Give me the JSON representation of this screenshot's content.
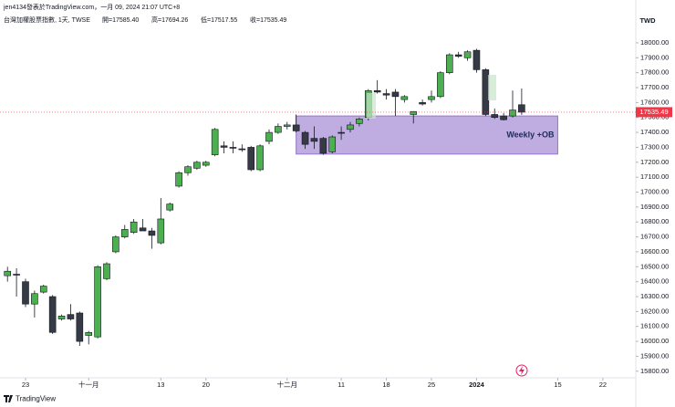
{
  "header": {
    "author": "jen4134發表於TradingView.com，一月 09, 2024 21:07 UTC+8",
    "symbol": "台灣加權股票指數, 1天, TWSE",
    "ohlc": [
      "開=17585.40",
      "高=17694.26",
      "低=17517.55",
      "收=17535.49"
    ]
  },
  "currency": "TWD",
  "brand": "TradingView",
  "chart_data": {
    "type": "candlestick",
    "x": [
      0,
      1,
      2,
      3,
      4,
      5,
      6,
      7,
      8,
      9,
      10,
      11,
      12,
      13,
      14,
      15,
      16,
      17,
      18,
      19,
      20,
      21,
      22,
      23,
      24,
      25,
      26,
      27,
      28,
      29,
      30,
      31,
      32,
      33,
      34,
      35,
      36,
      37,
      38,
      39,
      40,
      41,
      42,
      43,
      44,
      45,
      46,
      47,
      48,
      49,
      50,
      51,
      52,
      53,
      54,
      55,
      56,
      57
    ],
    "open": [
      16440,
      16450,
      16400,
      16250,
      16330,
      16300,
      16150,
      16180,
      16190,
      16040,
      16030,
      16420,
      16600,
      16700,
      16730,
      16760,
      16740,
      16660,
      16880,
      17040,
      17130,
      17160,
      17180,
      17250,
      17310,
      17300,
      17290,
      17300,
      17150,
      17340,
      17400,
      17440,
      17450,
      17400,
      17360,
      17360,
      17270,
      17400,
      17420,
      17460,
      17500,
      17680,
      17660,
      17670,
      17620,
      17520,
      17600,
      17620,
      17640,
      17800,
      17920,
      17900,
      17950,
      17820,
      17520,
      17510,
      17510,
      17585.4
    ],
    "high": [
      16500,
      16490,
      16420,
      16340,
      16380,
      16310,
      16180,
      16250,
      16200,
      16070,
      16510,
      16530,
      16710,
      16780,
      16820,
      16820,
      16760,
      16960,
      16930,
      17140,
      17180,
      17210,
      17210,
      17430,
      17340,
      17340,
      17320,
      17310,
      17320,
      17420,
      17460,
      17470,
      17520,
      17410,
      17440,
      17370,
      17380,
      17440,
      17470,
      17500,
      17690,
      17750,
      17690,
      17690,
      17650,
      17540,
      17620,
      17680,
      17810,
      17930,
      17940,
      17950,
      17960,
      17830,
      17560,
      17530,
      17680,
      17694.26
    ],
    "low": [
      16400,
      16300,
      16230,
      16160,
      16320,
      16050,
      16140,
      16140,
      15970,
      15980,
      16020,
      16410,
      16590,
      16690,
      16720,
      16740,
      16620,
      16650,
      16870,
      17030,
      17110,
      17150,
      17170,
      17240,
      17260,
      17260,
      17270,
      17140,
      17140,
      17320,
      17390,
      17420,
      17400,
      17290,
      17290,
      17250,
      17260,
      17350,
      17400,
      17440,
      17480,
      17660,
      17620,
      17510,
      17600,
      17460,
      17580,
      17600,
      17630,
      17790,
      17900,
      17880,
      17800,
      17510,
      17490,
      17480,
      17500,
      17517.55
    ],
    "close": [
      16470,
      16445,
      16250,
      16320,
      16370,
      16060,
      16170,
      16150,
      16000,
      16060,
      16500,
      16520,
      16700,
      16750,
      16800,
      16740,
      16710,
      16820,
      16920,
      17130,
      17170,
      17200,
      17200,
      17420,
      17300,
      17295,
      17285,
      17150,
      17310,
      17400,
      17440,
      17450,
      17410,
      17320,
      17340,
      17260,
      17370,
      17395,
      17450,
      17490,
      17680,
      17670,
      17650,
      17640,
      17640,
      17540,
      17590,
      17640,
      17800,
      17920,
      17910,
      17940,
      17820,
      17520,
      17500,
      17485,
      17550,
      17535.49
    ],
    "up_color": "#4caf50",
    "down_color": "#363a45",
    "xlim": [
      -0.83,
      69.65
    ],
    "xticks": [
      {
        "value": 2,
        "label": "23"
      },
      {
        "value": 9,
        "label": "十一月"
      },
      {
        "value": 17,
        "label": "13"
      },
      {
        "value": 22,
        "label": "20"
      },
      {
        "value": 31,
        "label": "十二月"
      },
      {
        "value": 37,
        "label": "11"
      },
      {
        "value": 42,
        "label": "18"
      },
      {
        "value": 47,
        "label": "25"
      },
      {
        "value": 52,
        "label": "2024"
      },
      {
        "value": 61,
        "label": "15"
      },
      {
        "value": 66,
        "label": "22"
      }
    ],
    "ylim": [
      15756,
      18287
    ],
    "yticks": [
      {
        "value": 15800,
        "label": "15800.00"
      },
      {
        "value": 15900,
        "label": "15900.00"
      },
      {
        "value": 16000,
        "label": "16000.00"
      },
      {
        "value": 16100,
        "label": "16100.00"
      },
      {
        "value": 16200,
        "label": "16200.00"
      },
      {
        "value": 16300,
        "label": "16300.00"
      },
      {
        "value": 16400,
        "label": "16400.00"
      },
      {
        "value": 16500,
        "label": "16500.00"
      },
      {
        "value": 16600,
        "label": "16600.00"
      },
      {
        "value": 16700,
        "label": "16700.00"
      },
      {
        "value": 16800,
        "label": "16800.00"
      },
      {
        "value": 16900,
        "label": "16900.00"
      },
      {
        "value": 17000,
        "label": "17000.00"
      },
      {
        "value": 17100,
        "label": "17100.00"
      },
      {
        "value": 17200,
        "label": "17200.00"
      },
      {
        "value": 17300,
        "label": "17300.00"
      },
      {
        "value": 17400,
        "label": "17400.00"
      },
      {
        "value": 17500,
        "label": "17500.00"
      },
      {
        "value": 17600,
        "label": "17600.00"
      },
      {
        "value": 17700,
        "label": "17700.00"
      },
      {
        "value": 17800,
        "label": "17800.00"
      },
      {
        "value": 17900,
        "label": "17900.00"
      },
      {
        "value": 18000,
        "label": "18000.00"
      }
    ],
    "last_price": 17535.49,
    "last_price_color": "#f23645",
    "zone": {
      "label": "Weekly +OB",
      "top": 17510,
      "bottom": 17255,
      "start": 32,
      "end": 61,
      "color": "#9575cd"
    }
  }
}
